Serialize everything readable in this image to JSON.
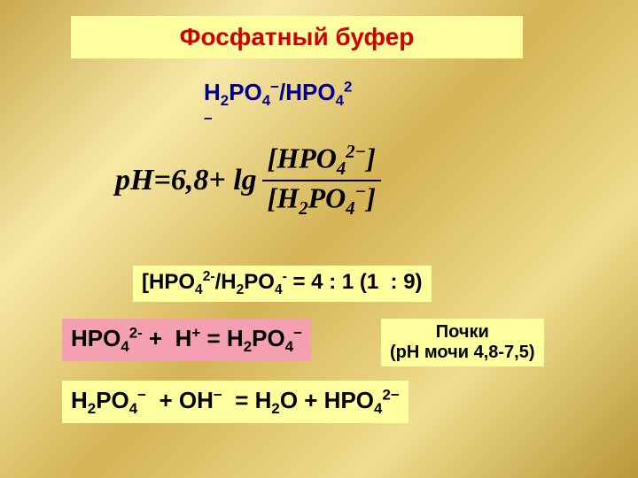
{
  "title": "Фосфатный буфер",
  "subtitle_line1": "H₂PO₄⁻/HPO₄²",
  "subtitle_line2": "⁻",
  "eq_lhs": "pH",
  "eq_eq": " = ",
  "eq_const": "6,8",
  "eq_plus": " + lg",
  "eq_num": "[HPO₄²⁻]",
  "eq_den": "[H₂PO₄⁻]",
  "ratio_text": "[HPO₄²⁻/H₂PO₄⁻ = 4 : 1 (1  : 9)",
  "eqn1": "HPO₄²⁻ +  H⁺ = H₂PO₄⁻",
  "kidney_l1": "Почки",
  "kidney_l2": "(рН мочи 4,8-7,5)",
  "eqn2": "H₂PO₄⁻  + OH⁻  = H₂O + HPO₄²⁻",
  "colors": {
    "title_bg": "#ffffa0",
    "title_fg": "#d00000",
    "subtitle_fg": "#000090",
    "eqn1_bg": "#f5a0b0",
    "ratio_bg": "#ffffa0",
    "kidney_bg": "#ffffa0",
    "eqn2_bg": "#ffffa0"
  },
  "fonts": {
    "title_size": 28,
    "subtitle_size": 26,
    "equation_size": 34,
    "ratio_size": 24,
    "eqn_size": 26,
    "kidney_size": 20
  }
}
